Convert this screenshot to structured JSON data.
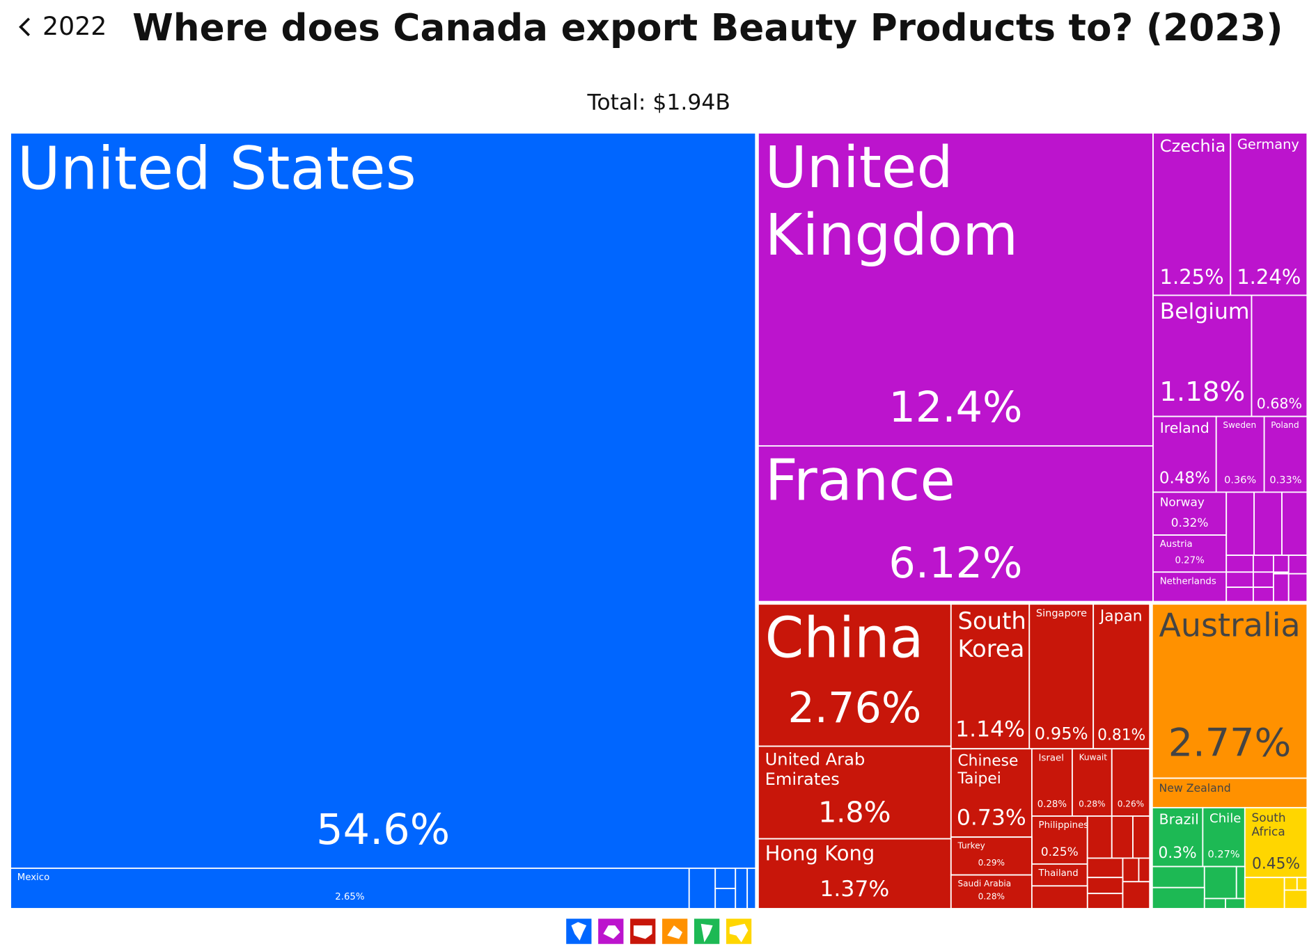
{
  "back_link": "2022",
  "chart_data": {
    "type": "treemap",
    "title": "Where does Canada export Beauty Products to? (2023)",
    "subtitle": "Total: $1.94B",
    "labels": [
      "United States",
      "Mexico",
      "United Kingdom",
      "France",
      "Czechia",
      "Germany",
      "Belgium",
      null,
      "Ireland",
      "Sweden",
      "Poland",
      "Norway",
      "Austria",
      "Netherlands",
      "China",
      "United Arab Emirates",
      "Hong Kong",
      "South Korea",
      "Singapore",
      "Japan",
      "Chinese Taipei",
      "Israel",
      "Kuwait",
      null,
      "Philippines",
      "Turkey",
      "Saudi Arabia",
      "Thailand",
      "Australia",
      "New Zealand",
      "Brazil",
      "Chile",
      "South Africa"
    ],
    "values": [
      54.6,
      2.65,
      12.4,
      6.12,
      1.25,
      1.24,
      1.18,
      0.68,
      0.48,
      0.36,
      0.33,
      0.32,
      0.27,
      0.22,
      2.76,
      1.8,
      1.37,
      1.14,
      0.95,
      0.81,
      0.73,
      0.28,
      0.28,
      0.26,
      0.25,
      0.29,
      0.28,
      0.15,
      2.77,
      0.2,
      0.3,
      0.27,
      0.45
    ],
    "value_labels": [
      "54.6%",
      "2.65%",
      "12.4%",
      "6.12%",
      "1.25%",
      "1.24%",
      "1.18%",
      "0.68%",
      "0.48%",
      "0.36%",
      "0.33%",
      "0.32%",
      "0.27%",
      null,
      "2.76%",
      "1.8%",
      "1.37%",
      "1.14%",
      "0.95%",
      "0.81%",
      "0.73%",
      "0.28%",
      "0.28%",
      "0.26%",
      "0.25%",
      "0.29%",
      "0.28%",
      null,
      "2.77%",
      null,
      "0.3%",
      "0.27%",
      "0.45%"
    ],
    "colors": [
      "#0066ff",
      "#0066ff",
      "#bc14cd",
      "#bc14cd",
      "#bc14cd",
      "#bc14cd",
      "#bc14cd",
      "#bc14cd",
      "#bc14cd",
      "#bc14cd",
      "#bc14cd",
      "#bc14cd",
      "#bc14cd",
      "#bc14cd",
      "#c8160a",
      "#c8160a",
      "#c8160a",
      "#c8160a",
      "#c8160a",
      "#c8160a",
      "#c8160a",
      "#c8160a",
      "#c8160a",
      "#c8160a",
      "#c8160a",
      "#c8160a",
      "#c8160a",
      "#c8160a",
      "#ff9100",
      "#ff9100",
      "#1db954",
      "#1db954",
      "#ffd600"
    ]
  }
}
